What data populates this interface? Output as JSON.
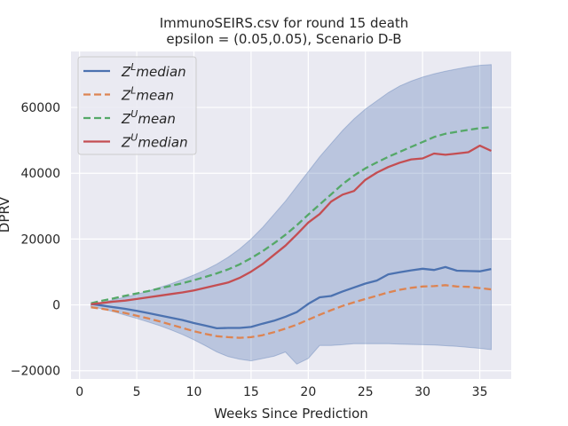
{
  "chart_data": {
    "type": "line",
    "title": "ImmunoSEIRS.csv for round 15 death",
    "subtitle": "epsilon = (0.05,0.05), Scenario D-B",
    "xlabel": "Weeks Since Prediction",
    "ylabel": "DPRV",
    "xlim": [
      -0.75,
      37.75
    ],
    "ylim": [
      -22500,
      77000
    ],
    "xticks": [
      0,
      5,
      10,
      15,
      20,
      25,
      30,
      35
    ],
    "xtick_labels": [
      "0",
      "5",
      "10",
      "15",
      "20",
      "25",
      "30",
      "35"
    ],
    "yticks": [
      -20000,
      0,
      20000,
      40000,
      60000
    ],
    "ytick_labels": [
      "−20000",
      "0",
      "20000",
      "40000",
      "60000"
    ],
    "grid": true,
    "legend_position": "top-left",
    "x": [
      1,
      2,
      3,
      4,
      5,
      6,
      7,
      8,
      9,
      10,
      11,
      12,
      13,
      14,
      15,
      16,
      17,
      18,
      19,
      20,
      21,
      22,
      23,
      24,
      25,
      26,
      27,
      28,
      29,
      30,
      31,
      32,
      33,
      34,
      35,
      36
    ],
    "band": {
      "upper": [
        300,
        800,
        1600,
        2400,
        3200,
        4200,
        5300,
        6400,
        7700,
        9100,
        10600,
        12400,
        14500,
        17000,
        20000,
        23500,
        27500,
        31500,
        36000,
        40500,
        45000,
        49000,
        53000,
        56500,
        59500,
        62000,
        64500,
        66500,
        68000,
        69200,
        70200,
        71000,
        71700,
        72300,
        72800,
        73000
      ],
      "lower": [
        -500,
        -1200,
        -2100,
        -3100,
        -4100,
        -5200,
        -6300,
        -7600,
        -9000,
        -10600,
        -12400,
        -14300,
        -15700,
        -16500,
        -17000,
        -16300,
        -15600,
        -14300,
        -18000,
        -16300,
        -12300,
        -12300,
        -12100,
        -11800,
        -11800,
        -11800,
        -11800,
        -11900,
        -12000,
        -12100,
        -12200,
        -12400,
        -12600,
        -12900,
        -13200,
        -13600
      ],
      "color": "#4c72b0"
    },
    "series": [
      {
        "name": "Z^L median",
        "base": "Z",
        "sup": "L",
        "stat": "median",
        "color": "#4c72b0",
        "dashed": false,
        "values": [
          300,
          -200,
          -700,
          -1200,
          -1800,
          -2500,
          -3200,
          -3900,
          -4600,
          -5500,
          -6300,
          -7100,
          -7000,
          -7000,
          -6700,
          -5700,
          -4800,
          -3600,
          -2200,
          300,
          2300,
          2700,
          4100,
          5300,
          6500,
          7400,
          9300,
          9900,
          10500,
          11000,
          10600,
          11500,
          10400,
          10300,
          10200,
          10900
        ]
      },
      {
        "name": "Z^L mean",
        "base": "Z",
        "sup": "L",
        "stat": "mean",
        "color": "#dd8452",
        "dashed": true,
        "values": [
          -700,
          -1200,
          -1800,
          -2500,
          -3300,
          -4100,
          -5000,
          -6000,
          -7000,
          -8000,
          -8800,
          -9500,
          -9800,
          -10000,
          -9800,
          -9200,
          -8300,
          -7200,
          -6000,
          -4500,
          -3000,
          -1600,
          -300,
          800,
          1800,
          2800,
          3800,
          4600,
          5200,
          5600,
          5700,
          6000,
          5600,
          5500,
          5100,
          4700
        ]
      },
      {
        "name": "Z^U mean",
        "base": "Z",
        "sup": "U",
        "stat": "mean",
        "color": "#55a868",
        "dashed": true,
        "values": [
          500,
          1300,
          2000,
          2800,
          3500,
          4200,
          5000,
          5800,
          6600,
          7500,
          8500,
          9600,
          10800,
          12300,
          14200,
          16300,
          18700,
          21300,
          24200,
          27400,
          30500,
          33600,
          36700,
          39300,
          41500,
          43300,
          45000,
          46500,
          48000,
          49500,
          51000,
          52000,
          52600,
          53200,
          53700,
          54000
        ]
      },
      {
        "name": "Z^U median",
        "base": "Z",
        "sup": "U",
        "stat": "median",
        "color": "#c44e52",
        "dashed": false,
        "values": [
          200,
          600,
          1000,
          1300,
          1800,
          2300,
          2800,
          3300,
          3800,
          4400,
          5200,
          6000,
          6800,
          8200,
          10100,
          12400,
          15200,
          18000,
          21400,
          25000,
          27600,
          31400,
          33500,
          34600,
          38000,
          40200,
          41900,
          43200,
          44200,
          44500,
          46000,
          45600,
          46000,
          46400,
          48400,
          46800
        ]
      }
    ]
  }
}
